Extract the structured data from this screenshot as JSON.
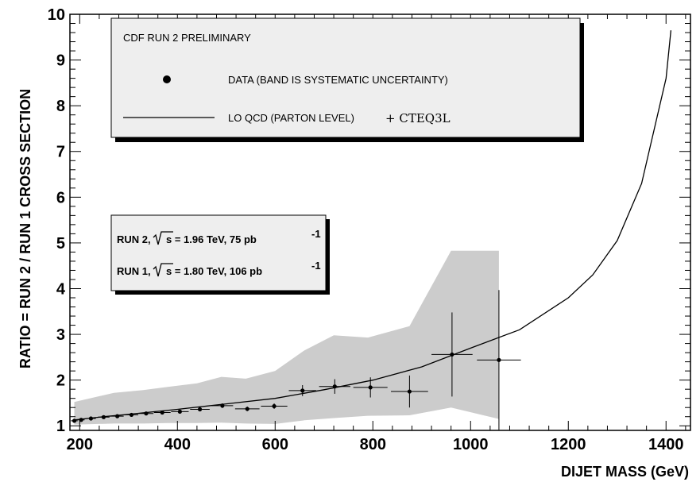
{
  "chart_data": {
    "type": "scatter",
    "xlabel": "DIJET MASS (GeV)",
    "ylabel": "RATIO = RUN 2 / RUN 1 CROSS  SECTION",
    "xlim": [
      180,
      1450
    ],
    "ylim": [
      0.9,
      10
    ],
    "xticks": [
      200,
      400,
      600,
      800,
      1000,
      1200,
      1400
    ],
    "yticks": [
      1,
      2,
      3,
      4,
      5,
      6,
      7,
      8,
      9,
      10
    ],
    "grid": false,
    "legend": {
      "header": "CDF RUN 2 PRELIMINARY",
      "entries": [
        {
          "marker": "point",
          "label": "DATA  (BAND IS SYSTEMATIC UNCERTAINTY)"
        },
        {
          "marker": "line",
          "label": "LO QCD (PARTON LEVEL)",
          "suffix": "+ CTEQ3L"
        }
      ],
      "placement": "top-left"
    },
    "info_box": {
      "run2_prefix": "RUN 2,",
      "run2_value": "s = 1.96 TeV,  75 pb",
      "run2_exp": "-1",
      "run1_prefix": "RUN 1,",
      "run1_value": "s = 1.80 TeV,  106 pb",
      "run1_exp": "-1"
    },
    "data_points": [
      {
        "x": 189,
        "y": 1.11,
        "xerr": 7,
        "yerr": 0.03
      },
      {
        "x": 203,
        "y": 1.13,
        "xerr": 7,
        "yerr": 0.03
      },
      {
        "x": 223,
        "y": 1.16,
        "xerr": 10,
        "yerr": 0.03
      },
      {
        "x": 249,
        "y": 1.19,
        "xerr": 12,
        "yerr": 0.03
      },
      {
        "x": 277,
        "y": 1.21,
        "xerr": 13,
        "yerr": 0.03
      },
      {
        "x": 306,
        "y": 1.24,
        "xerr": 14,
        "yerr": 0.03
      },
      {
        "x": 336,
        "y": 1.27,
        "xerr": 15,
        "yerr": 0.03
      },
      {
        "x": 369,
        "y": 1.29,
        "xerr": 17,
        "yerr": 0.03
      },
      {
        "x": 405,
        "y": 1.31,
        "xerr": 18,
        "yerr": 0.04
      },
      {
        "x": 446,
        "y": 1.36,
        "xerr": 20,
        "yerr": 0.04
      },
      {
        "x": 492,
        "y": 1.44,
        "xerr": 22,
        "yerr": 0.05
      },
      {
        "x": 543,
        "y": 1.37,
        "xerr": 25,
        "yerr": 0.05
      },
      {
        "x": 598,
        "y": 1.43,
        "xerr": 27,
        "yerr": 0.06
      },
      {
        "x": 656,
        "y": 1.77,
        "xerr": 28,
        "yerr": 0.12
      },
      {
        "x": 722,
        "y": 1.86,
        "xerr": 32,
        "yerr": 0.16
      },
      {
        "x": 795,
        "y": 1.84,
        "xerr": 35,
        "yerr": 0.22
      },
      {
        "x": 875,
        "y": 1.75,
        "xerr": 38,
        "yerr": 0.35
      },
      {
        "x": 962,
        "y": 2.56,
        "xerr": 42,
        "yerr": 0.92
      },
      {
        "x": 1058,
        "y": 2.44,
        "xerr": 45,
        "yerr": 1.53
      }
    ],
    "systematic_band": {
      "x": [
        189,
        200,
        270,
        330,
        380,
        440,
        490,
        540,
        600,
        660,
        720,
        790,
        875,
        960,
        1058
      ],
      "upper": [
        1.52,
        1.55,
        1.72,
        1.78,
        1.85,
        1.93,
        2.07,
        2.03,
        2.2,
        2.65,
        2.98,
        2.93,
        3.18,
        4.83,
        4.83
      ],
      "lower": [
        1.03,
        1.03,
        1.05,
        1.05,
        1.06,
        1.06,
        1.07,
        1.05,
        1.04,
        1.12,
        1.17,
        1.22,
        1.23,
        1.4,
        1.15
      ]
    },
    "qcd_curve": {
      "x": [
        190,
        250,
        300,
        400,
        500,
        600,
        700,
        800,
        900,
        1000,
        1100,
        1200,
        1250,
        1300,
        1350,
        1400,
        1410
      ],
      "y": [
        1.13,
        1.2,
        1.25,
        1.36,
        1.48,
        1.6,
        1.79,
        2.0,
        2.29,
        2.7,
        3.1,
        3.8,
        4.3,
        5.05,
        6.3,
        8.6,
        9.65
      ]
    },
    "colors": {
      "band": "#cccccc",
      "box_fill": "#eeeeee",
      "box_shadow": "#000000",
      "markers": "#000000"
    }
  }
}
